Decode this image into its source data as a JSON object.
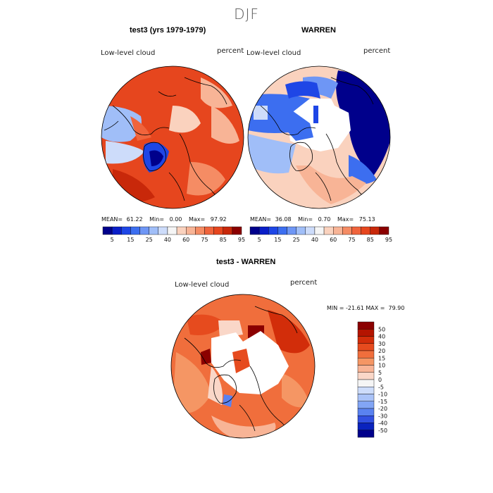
{
  "season": "DJF",
  "panels": [
    {
      "title": "test3 (yrs 1979-1979)",
      "variable": "Low-level cloud",
      "units": "percent",
      "mean_label": "MEAN=",
      "mean": "61.22",
      "min_label": "Min=",
      "min": "0.00",
      "max_label": "Max=",
      "max": "97.92"
    },
    {
      "title": "WARREN",
      "variable": "Low-level cloud",
      "units": "percent",
      "mean_label": "MEAN=",
      "mean": "36.08",
      "min_label": "Min=",
      "min": "0.70",
      "max_label": "Max=",
      "max": "75.13"
    }
  ],
  "diff_panel": {
    "title": "test3 - WARREN",
    "variable": "Low-level cloud",
    "units": "percent",
    "minmax_text": "MIN = -21.61 MAX =  79.90"
  },
  "chart_data": [
    {
      "type": "heatmap",
      "title": "test3 (yrs 1979-1979)",
      "projection": "north polar stereographic",
      "units": "percent",
      "stats": {
        "mean": 61.22,
        "min": 0.0,
        "max": 97.92
      },
      "colorbar_ticks": [
        "5",
        "15",
        "25",
        "40",
        "60",
        "75",
        "85",
        "95"
      ],
      "colorbar_colors": [
        "#00008b",
        "#0a1ec8",
        "#1e46e6",
        "#3c6ef0",
        "#6e96f5",
        "#a0bef8",
        "#cddcfa",
        "#f5f5f5",
        "#fad2be",
        "#f8b496",
        "#f58c64",
        "#f0643c",
        "#e6461e",
        "#c8280a",
        "#8b0000"
      ]
    },
    {
      "type": "heatmap",
      "title": "WARREN",
      "projection": "north polar stereographic",
      "units": "percent",
      "stats": {
        "mean": 36.08,
        "min": 0.7,
        "max": 75.13
      },
      "colorbar_ticks": [
        "5",
        "15",
        "25",
        "40",
        "60",
        "75",
        "85",
        "95"
      ],
      "colorbar_colors": [
        "#00008b",
        "#0a1ec8",
        "#1e46e6",
        "#3c6ef0",
        "#6e96f5",
        "#a0bef8",
        "#cddcfa",
        "#f5f5f5",
        "#fad2be",
        "#f8b496",
        "#f58c64",
        "#f0643c",
        "#e6461e",
        "#c8280a",
        "#8b0000"
      ]
    },
    {
      "type": "heatmap",
      "title": "test3 - WARREN",
      "projection": "north polar stereographic",
      "units": "percent",
      "stats": {
        "min": -21.61,
        "max": 79.9
      },
      "colorbar_ticks": [
        "50",
        "40",
        "30",
        "20",
        "15",
        "10",
        "5",
        "0",
        "-5",
        "-10",
        "-15",
        "-20",
        "-30",
        "-40",
        "-50"
      ],
      "colorbar_colors": [
        "#8b0000",
        "#b41400",
        "#d22d0a",
        "#e64b1e",
        "#f06e3c",
        "#f59664",
        "#f8b496",
        "#fad7c8",
        "#f5f5f5",
        "#cddcfa",
        "#aac3f8",
        "#82a5f5",
        "#5a82f0",
        "#3250e1",
        "#0a23be",
        "#00008b"
      ]
    }
  ]
}
